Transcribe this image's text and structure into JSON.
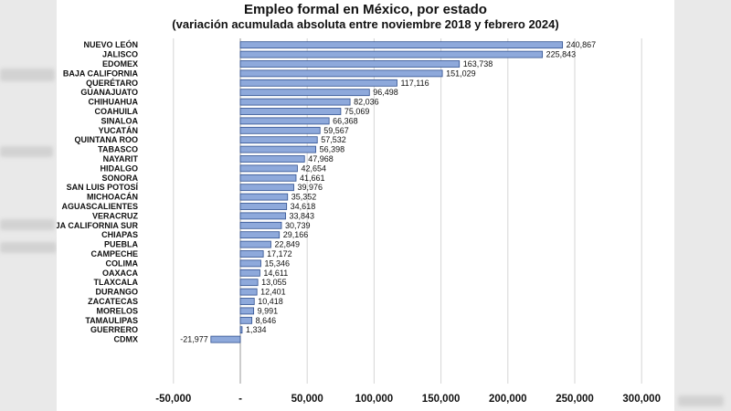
{
  "chart_data": {
    "type": "bar",
    "orientation": "horizontal",
    "title": "Empleo formal en México, por estado",
    "subtitle": "(variación acumulada absoluta entre noviembre 2018 y febrero 2024)",
    "categories": [
      "NUEVO LEÓN",
      "JALISCO",
      "EDOMEX",
      "BAJA CALIFORNIA",
      "QUERÉTARO",
      "GUANAJUATO",
      "CHIHUAHUA",
      "COAHUILA",
      "SINALOA",
      "YUCATÁN",
      "QUINTANA ROO",
      "TABASCO",
      "NAYARIT",
      "HIDALGO",
      "SONORA",
      "SAN LUIS POTOSÍ",
      "MICHOACÁN",
      "AGUASCALIENTES",
      "VERACRUZ",
      "BAJA CALIFORNIA SUR",
      "CHIAPAS",
      "PUEBLA",
      "CAMPECHE",
      "COLIMA",
      "OAXACA",
      "TLAXCALA",
      "DURANGO",
      "ZACATECAS",
      "MORELOS",
      "TAMAULIPAS",
      "GUERRERO",
      "CDMX"
    ],
    "values": [
      240867,
      225843,
      163738,
      151029,
      117116,
      96498,
      82036,
      75069,
      66368,
      59567,
      57532,
      56398,
      47968,
      42654,
      41661,
      39976,
      35352,
      34618,
      33843,
      30739,
      29166,
      22849,
      17172,
      15346,
      14611,
      13055,
      12401,
      10418,
      9991,
      8646,
      1334,
      -21977
    ],
    "value_labels": [
      "240,867",
      "225,843",
      "163,738",
      "151,029",
      "117,116",
      "96,498",
      "82,036",
      "75,069",
      "66,368",
      "59,567",
      "57,532",
      "56,398",
      "47,968",
      "42,654",
      "41,661",
      "39,976",
      "35,352",
      "34,618",
      "33,843",
      "30,739",
      "29,166",
      "22,849",
      "17,172",
      "15,346",
      "14,611",
      "13,055",
      "12,401",
      "10,418",
      "9,991",
      "8,646",
      "1,334",
      "-21,977"
    ],
    "xlim": [
      -50000,
      300000
    ],
    "xticks": [
      -50000,
      0,
      50000,
      100000,
      150000,
      200000,
      250000,
      300000
    ],
    "xtick_labels": [
      "-50,000",
      "-",
      "50,000",
      "100,000",
      "150,000",
      "200,000",
      "250,000",
      "300,000"
    ],
    "grid": true,
    "bar_color": "#8ea9db",
    "bar_edge_color": "#2f4f8f"
  }
}
